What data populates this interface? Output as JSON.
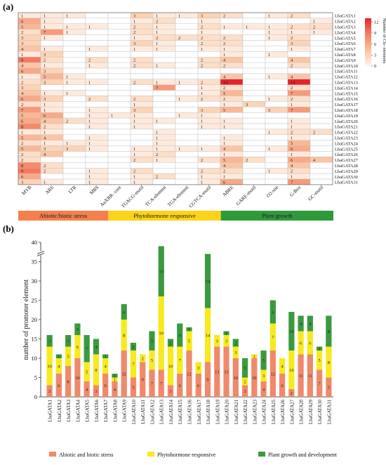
{
  "panel_labels": {
    "a": "(a)",
    "b": "(b)"
  },
  "chart_data": [
    {
      "type": "heatmap",
      "panel": "(a)",
      "colorbar": {
        "label": "Number of Cis- elements",
        "ticks": [
          0,
          3,
          6,
          9,
          12
        ],
        "min": 0,
        "max": 13,
        "colors": [
          "#fff5ef",
          "#fcd0b0",
          "#f9a27f",
          "#f46c55",
          "#e8222b"
        ]
      },
      "columns": [
        "MYB",
        "ARE",
        "LTR",
        "MBS",
        "AuXRR- core",
        "TGACG-motif",
        "TCA-element",
        "TGA-element",
        "CGTCA-motif",
        "ABRE",
        "GARE-motif",
        "O2-site",
        "G-Box",
        "GC-motif"
      ],
      "rows": [
        "LbaGATA1",
        "LbaGATA2",
        "LbaGATA3",
        "LbaGATA4",
        "LbaGATA5",
        "LbaGATA6",
        "LbaGATA7",
        "LbaGATA8",
        "LbaGATA9",
        "LbaGATA10",
        "LbaGATA11",
        "LbaGATA12",
        "LbaGATA13",
        "LbaGATA14",
        "LbaGATA15",
        "LbaGATA16",
        "LbaGATA17",
        "LbaGATA18",
        "LbaGATA19",
        "LbaGATA20",
        "LbaGATA21",
        "LbaGATA22",
        "LbaGATA23",
        "LbaGATA24",
        "LbaGATA25",
        "LbaGATA26",
        "LbaGATA27",
        "LbaGATA28",
        "LbaGATA29",
        "LbaGATA30",
        "LbaGATA31"
      ],
      "values": [
        [
          1,
          1,
          1,
          0,
          0,
          3,
          1,
          1,
          3,
          2,
          0,
          1,
          2,
          0
        ],
        [
          6,
          1,
          0,
          0,
          0,
          1,
          2,
          0,
          1,
          0,
          0,
          0,
          0,
          1
        ],
        [
          5,
          1,
          1,
          1,
          0,
          2,
          1,
          0,
          2,
          1,
          1,
          1,
          2,
          2
        ],
        [
          2,
          7,
          1,
          0,
          0,
          2,
          1,
          0,
          1,
          0,
          0,
          1,
          1,
          1
        ],
        [
          3,
          1,
          0,
          0,
          0,
          1,
          2,
          2,
          2,
          2,
          0,
          1,
          2,
          0
        ],
        [
          3,
          0,
          0,
          0,
          0,
          3,
          1,
          0,
          2,
          2,
          0,
          0,
          3,
          0
        ],
        [
          4,
          1,
          0,
          1,
          0,
          1,
          1,
          0,
          1,
          1,
          0,
          0,
          1,
          0
        ],
        [
          1,
          3,
          0,
          0,
          0,
          0,
          0,
          0,
          0,
          1,
          0,
          1,
          0,
          0
        ],
        [
          9,
          2,
          0,
          2,
          0,
          2,
          0,
          0,
          2,
          4,
          0,
          0,
          4,
          0
        ],
        [
          4,
          1,
          0,
          1,
          0,
          2,
          1,
          0,
          2,
          2,
          0,
          0,
          2,
          0
        ],
        [
          6,
          3,
          0,
          0,
          0,
          0,
          0,
          0,
          0,
          0,
          0,
          0,
          0,
          0
        ],
        [
          1,
          5,
          1,
          0,
          0,
          0,
          0,
          0,
          0,
          4,
          0,
          1,
          4,
          0
        ],
        [
          2,
          3,
          1,
          1,
          0,
          2,
          1,
          1,
          2,
          14,
          0,
          0,
          14,
          0
        ],
        [
          3,
          0,
          0,
          0,
          0,
          0,
          7,
          0,
          1,
          2,
          0,
          0,
          2,
          0
        ],
        [
          4,
          1,
          1,
          0,
          0,
          0,
          0,
          0,
          1,
          5,
          0,
          0,
          7,
          0
        ],
        [
          6,
          3,
          0,
          2,
          0,
          2,
          0,
          1,
          2,
          2,
          0,
          1,
          2,
          0
        ],
        [
          2,
          1,
          0,
          0,
          0,
          1,
          0,
          0,
          0,
          1,
          3,
          0,
          1,
          0
        ],
        [
          7,
          1,
          0,
          1,
          0,
          3,
          0,
          0,
          3,
          5,
          0,
          3,
          7,
          0
        ],
        [
          5,
          6,
          0,
          1,
          1,
          1,
          0,
          1,
          1,
          0,
          0,
          0,
          0,
          0
        ],
        [
          6,
          4,
          2,
          1,
          0,
          1,
          1,
          0,
          1,
          1,
          0,
          0,
          1,
          0
        ],
        [
          8,
          2,
          0,
          1,
          0,
          1,
          0,
          0,
          1,
          1,
          0,
          0,
          1,
          0
        ],
        [
          1,
          1,
          0,
          0,
          0,
          0,
          1,
          0,
          0,
          0,
          0,
          1,
          2,
          2
        ],
        [
          5,
          4,
          0,
          1,
          0,
          0,
          1,
          0,
          0,
          1,
          0,
          0,
          1,
          0
        ],
        [
          2,
          1,
          1,
          1,
          0,
          0,
          1,
          0,
          0,
          1,
          0,
          0,
          5,
          0
        ],
        [
          5,
          3,
          3,
          1,
          0,
          1,
          1,
          1,
          1,
          4,
          0,
          1,
          6,
          0
        ],
        [
          2,
          4,
          0,
          0,
          0,
          1,
          2,
          0,
          0,
          1,
          0,
          0,
          1,
          0
        ],
        [
          2,
          0,
          0,
          0,
          0,
          2,
          1,
          0,
          2,
          5,
          2,
          0,
          6,
          4
        ],
        [
          8,
          2,
          0,
          0,
          0,
          0,
          0,
          0,
          0,
          4,
          0,
          0,
          4,
          0
        ],
        [
          9,
          2,
          0,
          1,
          0,
          2,
          0,
          0,
          2,
          2,
          0,
          1,
          2,
          0
        ],
        [
          6,
          0,
          0,
          1,
          0,
          1,
          2,
          0,
          1,
          1,
          0,
          0,
          1,
          0
        ],
        [
          3,
          1,
          0,
          1,
          0,
          1,
          0,
          0,
          1,
          6,
          0,
          0,
          7,
          0
        ]
      ],
      "category_bands": [
        {
          "label": "Abiotic/biotic stress",
          "color": "#f4804c",
          "from_col": 0,
          "to_col": 3
        },
        {
          "label": "Phytohormone responsive",
          "color": "#fdd31a",
          "from_col": 4,
          "to_col": 8
        },
        {
          "label": "Plant growth",
          "color": "#2f9a3b",
          "from_col": 9,
          "to_col": 13
        }
      ]
    },
    {
      "type": "bar",
      "stacked": true,
      "panel": "(b)",
      "ylabel": "number of promoter element",
      "y_ticks": [
        0,
        5,
        10,
        15,
        20,
        25,
        30,
        35,
        40
      ],
      "ylim": [
        0,
        40
      ],
      "axis_break": true,
      "categories": [
        "LbaGATA1",
        "LbaGATA2",
        "LbaGATA3",
        "LbaGATA4",
        "LbaGATA5",
        "LbaGATA6",
        "LbaGATA7",
        "LbaGATA8",
        "LbaGATA9",
        "LbaGATA10",
        "LbaGATA11",
        "LbaGATA12",
        "LbaGATA13",
        "LbaGATA14",
        "LbaGATA15",
        "LbaGATA16",
        "LbaGATA17",
        "LbaGATA18",
        "LbaGATA19",
        "LbaGATA20",
        "LbaGATA21",
        "LbaGATA22",
        "LbaGATA23",
        "LbaGATA24",
        "LbaGATA25",
        "LbaGATA26",
        "LbaGATA27",
        "LbaGATA28",
        "LbaGATA29",
        "LbaGATA30",
        "LbaGATA31"
      ],
      "series": [
        {
          "name": "Abiotic and biotic stress",
          "color": "#f0896b",
          "values": [
            3,
            6,
            8,
            10,
            4,
            3,
            6,
            4,
            12,
            5,
            9,
            7,
            7,
            3,
            6,
            12,
            6,
            9,
            13,
            13,
            10,
            3,
            10,
            4,
            12,
            6,
            2,
            11,
            11,
            7,
            5
          ]
        },
        {
          "name": "Phytohormone responsive",
          "color": "#f7ea1e",
          "values": [
            10,
            4,
            5,
            6,
            5,
            8,
            4,
            1,
            8,
            7,
            2,
            5,
            19,
            10,
            7,
            5,
            3,
            14,
            3,
            3,
            3,
            2,
            1,
            3,
            7,
            4,
            10,
            6,
            6,
            5,
            8
          ]
        },
        {
          "name": "Plant growth and development",
          "color": "#3b9a3f",
          "values": [
            3,
            1,
            3,
            3,
            7,
            4,
            1,
            1,
            4,
            2,
            0,
            5,
            13,
            2,
            6,
            1,
            0,
            14,
            0,
            1,
            2,
            5,
            0,
            5,
            6,
            0,
            10,
            4,
            4,
            1,
            8
          ]
        }
      ]
    }
  ]
}
